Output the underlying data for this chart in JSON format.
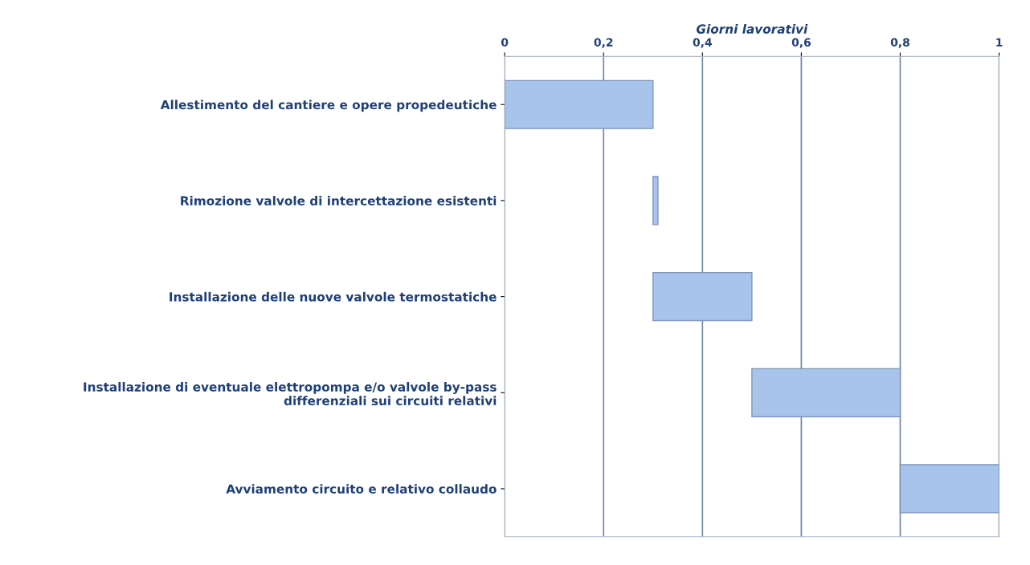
{
  "chart_data": {
    "type": "bar",
    "orientation": "horizontal",
    "xlabel": "Giorni lavorativi",
    "categories": [
      "Allestimento del cantiere e opere propedeutiche",
      "Rimozione valvole di intercettazione esistenti",
      "Installazione delle nuove valvole termostatiche",
      "Installazione di eventuale elettropompa e/o valvole by-pass\ndifferenziali sui circuiti relativi",
      "Avviamento circuito e relativo collaudo"
    ],
    "base": [
      0,
      0.3,
      0.3,
      0.5,
      0.8
    ],
    "values": [
      0.3,
      0.01,
      0.2,
      0.3,
      0.2
    ],
    "color": "#a9c4ea",
    "xlim": [
      0,
      1
    ],
    "xticks": [
      0,
      {
        "value": 0.2,
        "label": "0,2"
      },
      {
        "value": 0.4,
        "label": "0,4"
      },
      {
        "value": 0.6,
        "label": "0,6"
      },
      {
        "value": 0.8,
        "label": "0,8"
      },
      1
    ],
    "grid": "x"
  }
}
